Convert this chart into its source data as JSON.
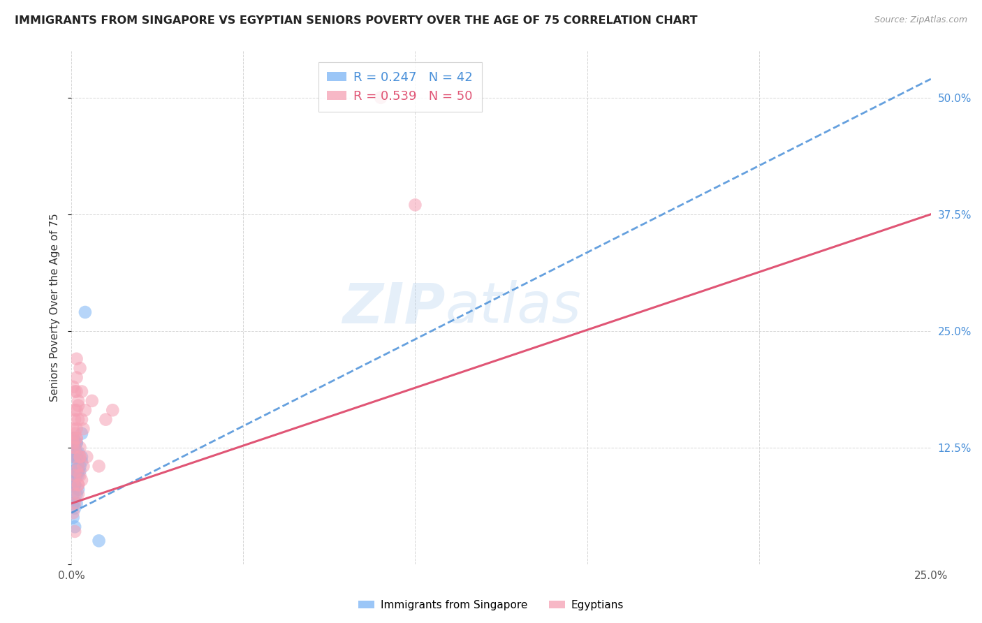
{
  "title": "IMMIGRANTS FROM SINGAPORE VS EGYPTIAN SENIORS POVERTY OVER THE AGE OF 75 CORRELATION CHART",
  "source": "Source: ZipAtlas.com",
  "ylabel": "Seniors Poverty Over the Age of 75",
  "xlim": [
    0.0,
    0.25
  ],
  "ylim": [
    0.0,
    0.55
  ],
  "yticks_right": [
    0.0,
    0.125,
    0.25,
    0.375,
    0.5
  ],
  "yticklabels_right": [
    "",
    "12.5%",
    "25.0%",
    "37.5%",
    "50.0%"
  ],
  "legend_label1": "Immigrants from Singapore",
  "legend_label2": "Egyptians",
  "R1": 0.247,
  "N1": 42,
  "R2": 0.539,
  "N2": 50,
  "color1": "#7ab4f5",
  "color2": "#f5a0b4",
  "trendline1_color": "#4a90d9",
  "trendline2_color": "#e05575",
  "watermark_text": "ZIP",
  "watermark_text2": "atlas",
  "trendline1_x0": 0.0,
  "trendline1_y0": 0.055,
  "trendline1_x1": 0.25,
  "trendline1_y1": 0.52,
  "trendline2_x0": 0.0,
  "trendline2_y0": 0.065,
  "trendline2_x1": 0.25,
  "trendline2_y1": 0.375,
  "singapore_x": [
    0.0005,
    0.001,
    0.0005,
    0.0015,
    0.001,
    0.0005,
    0.0015,
    0.002,
    0.001,
    0.0005,
    0.0005,
    0.001,
    0.0015,
    0.0005,
    0.001,
    0.002,
    0.0015,
    0.001,
    0.0005,
    0.0025,
    0.001,
    0.0005,
    0.0015,
    0.002,
    0.001,
    0.0005,
    0.003,
    0.0015,
    0.001,
    0.002,
    0.0005,
    0.0025,
    0.0015,
    0.001,
    0.003,
    0.0005,
    0.002,
    0.003,
    0.001,
    0.0015,
    0.004,
    0.008
  ],
  "singapore_y": [
    0.135,
    0.13,
    0.12,
    0.115,
    0.105,
    0.095,
    0.13,
    0.12,
    0.115,
    0.1,
    0.135,
    0.085,
    0.115,
    0.125,
    0.095,
    0.11,
    0.12,
    0.1,
    0.135,
    0.105,
    0.085,
    0.125,
    0.095,
    0.1,
    0.115,
    0.075,
    0.11,
    0.13,
    0.085,
    0.095,
    0.065,
    0.1,
    0.075,
    0.06,
    0.115,
    0.05,
    0.08,
    0.14,
    0.04,
    0.065,
    0.27,
    0.025
  ],
  "egyptian_x": [
    0.0005,
    0.001,
    0.0015,
    0.0005,
    0.002,
    0.001,
    0.0015,
    0.0005,
    0.0025,
    0.001,
    0.0015,
    0.002,
    0.001,
    0.0005,
    0.003,
    0.0015,
    0.001,
    0.002,
    0.0005,
    0.0025,
    0.0015,
    0.001,
    0.0035,
    0.002,
    0.0005,
    0.0015,
    0.001,
    0.0025,
    0.002,
    0.003,
    0.001,
    0.0015,
    0.004,
    0.0025,
    0.001,
    0.002,
    0.0035,
    0.0015,
    0.003,
    0.0005,
    0.0045,
    0.006,
    0.008,
    0.01,
    0.001,
    0.002,
    0.012,
    0.1,
    0.09,
    0.0025
  ],
  "egyptian_y": [
    0.13,
    0.165,
    0.2,
    0.19,
    0.17,
    0.14,
    0.185,
    0.125,
    0.21,
    0.155,
    0.1,
    0.175,
    0.115,
    0.135,
    0.09,
    0.165,
    0.125,
    0.085,
    0.145,
    0.115,
    0.22,
    0.185,
    0.145,
    0.105,
    0.085,
    0.135,
    0.075,
    0.125,
    0.155,
    0.185,
    0.095,
    0.145,
    0.165,
    0.115,
    0.065,
    0.085,
    0.105,
    0.135,
    0.155,
    0.055,
    0.115,
    0.175,
    0.105,
    0.155,
    0.035,
    0.075,
    0.165,
    0.385,
    0.5,
    0.095
  ]
}
